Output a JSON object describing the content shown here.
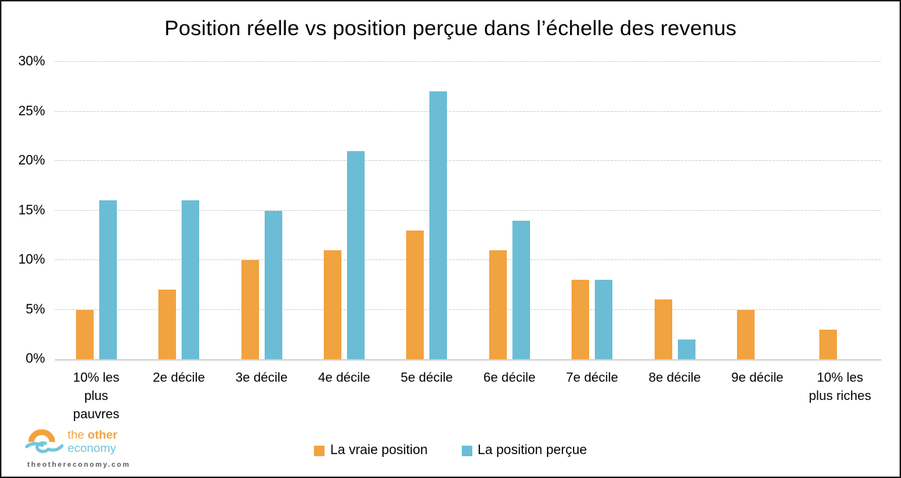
{
  "title": "Position réelle vs position perçue dans l’échelle des revenus",
  "chart_data": {
    "type": "bar",
    "title": "Position réelle vs position perçue dans l’échelle des revenus",
    "categories": [
      "10% les\nplus\npauvres",
      "2e décile",
      "3e décile",
      "4e décile",
      "5e décile",
      "6e décile",
      "7e décile",
      "8e décile",
      "9e décile",
      "10% les\nplus riches"
    ],
    "series": [
      {
        "name": "La vraie position",
        "color": "#F1A340",
        "values": [
          5,
          7,
          10,
          11,
          13,
          11,
          8,
          6,
          5,
          3
        ]
      },
      {
        "name": "La position perçue",
        "color": "#6ABDD5",
        "values": [
          16,
          16,
          15,
          21,
          27,
          14,
          8,
          2,
          0,
          0
        ]
      }
    ],
    "xlabel": "",
    "ylabel": "",
    "ylim": [
      0,
      30
    ],
    "yticks": [
      0,
      5,
      10,
      15,
      20,
      25,
      30
    ],
    "ytick_labels": [
      "0%",
      "5%",
      "10%",
      "15%",
      "20%",
      "25%",
      "30%"
    ],
    "grid": "horizontal",
    "legend_position": "bottom-center"
  },
  "footer": {
    "logo": {
      "word_the": "the ",
      "word_other": "other",
      "word_economy": "economy",
      "website": "theothereconomy.com",
      "brand_orange": "#F1A340",
      "brand_blue": "#6FC5DA"
    }
  }
}
